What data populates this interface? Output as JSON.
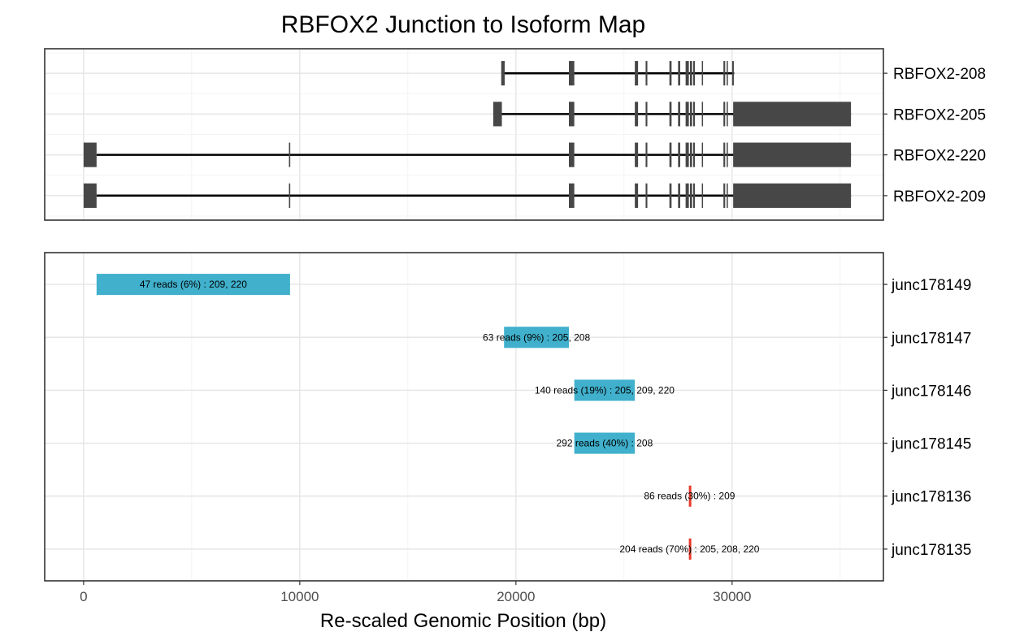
{
  "chart_data": {
    "type": "bar",
    "title": "RBFOX2 Junction to Isoform Map",
    "xlabel": "Re-scaled Genomic Position (bp)",
    "xlim": [
      -1800,
      37000
    ],
    "x_ticks": [
      0,
      10000,
      20000,
      30000
    ],
    "x_tick_labels": [
      "0",
      "10000",
      "20000",
      "30000"
    ],
    "grid": true,
    "isoforms": [
      {
        "name": "RBFOX2-208",
        "intron_line": [
          19400,
          30100
        ],
        "exons": [
          [
            19320,
            19480
          ],
          [
            22450,
            22700
          ],
          [
            25500,
            25650
          ],
          [
            26000,
            26080
          ],
          [
            27100,
            27200
          ],
          [
            27500,
            27600
          ],
          [
            27850,
            28000
          ],
          [
            28050,
            28150
          ],
          [
            28200,
            28280
          ],
          [
            28600,
            28650
          ],
          [
            29600,
            29680
          ],
          [
            29750,
            29800
          ],
          [
            30000,
            30080
          ]
        ]
      },
      {
        "name": "RBFOX2-205",
        "intron_line": [
          19300,
          35500
        ],
        "exons": [
          [
            18950,
            19350
          ],
          [
            22450,
            22700
          ],
          [
            25500,
            25650
          ],
          [
            26000,
            26080
          ],
          [
            27100,
            27200
          ],
          [
            27500,
            27600
          ],
          [
            27850,
            28000
          ],
          [
            28050,
            28150
          ],
          [
            28200,
            28280
          ],
          [
            28600,
            28650
          ],
          [
            29600,
            29680
          ],
          [
            29750,
            29800
          ],
          [
            30050,
            35500
          ]
        ]
      },
      {
        "name": "RBFOX2-220",
        "intron_line": [
          600,
          35500
        ],
        "exons": [
          [
            0,
            600
          ],
          [
            9500,
            9560
          ],
          [
            22450,
            22700
          ],
          [
            25500,
            25650
          ],
          [
            26000,
            26080
          ],
          [
            27100,
            27200
          ],
          [
            27500,
            27600
          ],
          [
            27850,
            28000
          ],
          [
            28050,
            28150
          ],
          [
            28200,
            28280
          ],
          [
            28600,
            28650
          ],
          [
            29600,
            29680
          ],
          [
            29750,
            29800
          ],
          [
            30050,
            35500
          ]
        ]
      },
      {
        "name": "RBFOX2-209",
        "intron_line": [
          600,
          35500
        ],
        "exons": [
          [
            0,
            600
          ],
          [
            9500,
            9560
          ],
          [
            22450,
            22700
          ],
          [
            25500,
            25650
          ],
          [
            26000,
            26080
          ],
          [
            27100,
            27200
          ],
          [
            27500,
            27600
          ],
          [
            27850,
            28000
          ],
          [
            28050,
            28150
          ],
          [
            28200,
            28280
          ],
          [
            28600,
            28650
          ],
          [
            29600,
            29680
          ],
          [
            29750,
            29800
          ],
          [
            30050,
            35500
          ]
        ]
      }
    ],
    "junctions": [
      {
        "name": "junc178149",
        "start": 600,
        "end": 9550,
        "label": "47 reads (6%) : 209, 220",
        "color": "#40b0cc"
      },
      {
        "name": "junc178147",
        "start": 19450,
        "end": 22450,
        "label": "63 reads (9%) : 205, 208",
        "color": "#40b0cc"
      },
      {
        "name": "junc178146",
        "start": 22700,
        "end": 25500,
        "label": "140 reads (19%) : 205, 209, 220",
        "color": "#40b0cc"
      },
      {
        "name": "junc178145",
        "start": 22700,
        "end": 25500,
        "label": "292 reads (40%) : 208",
        "color": "#40b0cc"
      },
      {
        "name": "junc178136",
        "start": 28000,
        "end": 28060,
        "label": "86 reads (30%) : 209",
        "color": "#e8392a"
      },
      {
        "name": "junc178135",
        "start": 28000,
        "end": 28060,
        "label": "204 reads (70%) : 205, 208, 220",
        "color": "#e8392a"
      }
    ]
  },
  "colors": {
    "exon": "#474747",
    "intron": "#000000",
    "junction_blue": "#40b0cc",
    "junction_red": "#e8392a"
  }
}
